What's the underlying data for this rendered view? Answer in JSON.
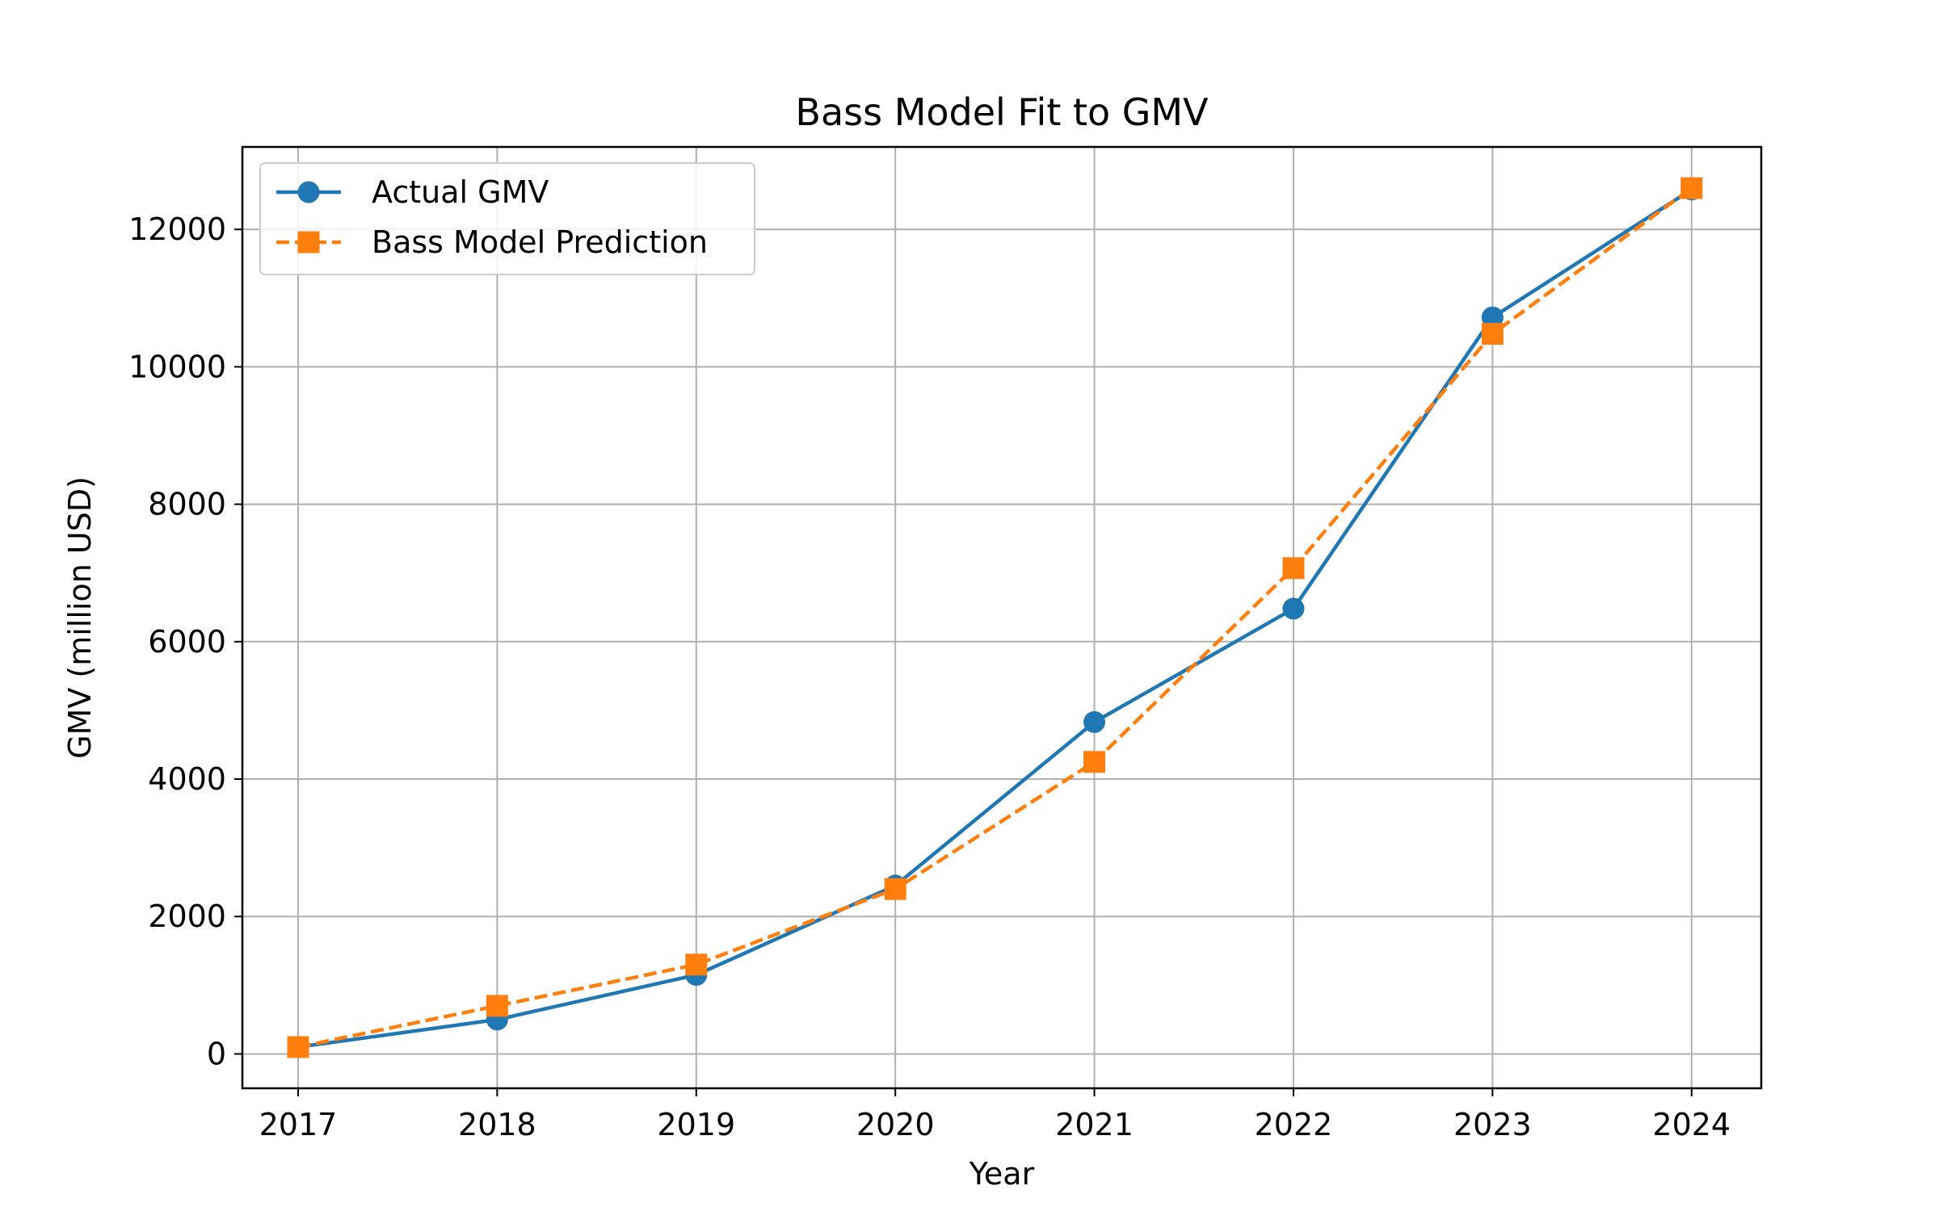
{
  "chart_data": {
    "type": "line",
    "title": "Bass Model Fit to GMV",
    "xlabel": "Year",
    "ylabel": "GMV (million USD)",
    "x": [
      2017,
      2018,
      2019,
      2020,
      2021,
      2022,
      2023,
      2024
    ],
    "xlim": [
      2016.72,
      2024.35
    ],
    "ylim": [
      -500,
      13200
    ],
    "yticks": [
      0,
      2000,
      4000,
      6000,
      8000,
      10000,
      12000
    ],
    "grid": true,
    "legend_position": "top-left",
    "series": [
      {
        "name": "Actual GMV",
        "color": "#1f77b4",
        "line_style": "solid",
        "marker": "circle",
        "values": [
          100,
          500,
          1150,
          2450,
          4830,
          6480,
          10720,
          12580
        ]
      },
      {
        "name": "Bass Model Prediction",
        "color": "#ff7f0e",
        "line_style": "dashed",
        "marker": "square",
        "values": [
          100,
          700,
          1300,
          2400,
          4250,
          7070,
          10480,
          12600
        ]
      }
    ]
  }
}
